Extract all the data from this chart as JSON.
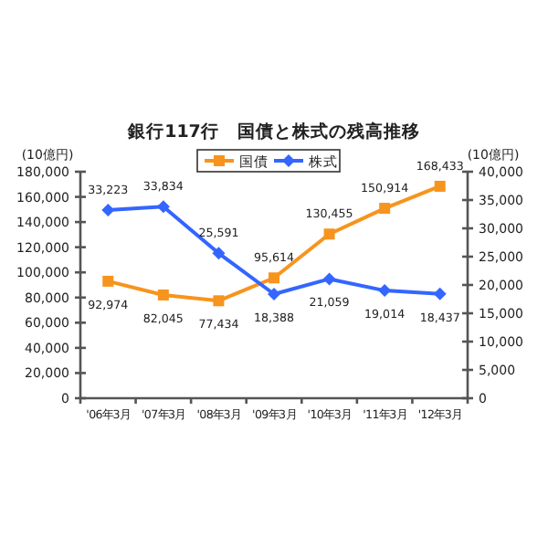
{
  "chart_data": {
    "type": "line",
    "title": "銀行117行　国債と株式の残高推移",
    "ylabel": "(10億円)",
    "y2label": "(10億円)",
    "categories": [
      "'06年3月",
      "'07年3月",
      "'08年3月",
      "'09年3月",
      "'10年3月",
      "'11年3月",
      "'12年3月"
    ],
    "series": [
      {
        "name": "国債",
        "color": "#f7941d",
        "marker": "square",
        "values": [
          92974,
          82045,
          77434,
          95614,
          130455,
          150914,
          168433
        ],
        "value_labels": [
          "92,974",
          "82,045",
          "77,434",
          "95,614",
          "130,455",
          "150,914",
          "168,433"
        ]
      },
      {
        "name": "株式",
        "color": "#3366ff",
        "marker": "diamond",
        "axis": "y2",
        "values": [
          33223,
          33834,
          25591,
          18388,
          21059,
          19014,
          18437
        ],
        "value_labels": [
          "33,223",
          "33,834",
          "25,591",
          "18,388",
          "21,059",
          "19,014",
          "18,437"
        ]
      }
    ],
    "ylim": [
      0,
      180000
    ],
    "yticks": [
      {
        "value": 0,
        "label": "0"
      },
      {
        "value": 20000,
        "label": "20,000"
      },
      {
        "value": 40000,
        "label": "40,000"
      },
      {
        "value": 60000,
        "label": "60,000"
      },
      {
        "value": 80000,
        "label": "80,000"
      },
      {
        "value": 100000,
        "label": "100,000"
      },
      {
        "value": 120000,
        "label": "120,000"
      },
      {
        "value": 140000,
        "label": "140,000"
      },
      {
        "value": 160000,
        "label": "160,000"
      },
      {
        "value": 180000,
        "label": "180,000"
      }
    ],
    "y2lim": [
      0,
      40000
    ],
    "y2ticks": [
      {
        "value": 0,
        "label": "0"
      },
      {
        "value": 5000,
        "label": "5,000"
      },
      {
        "value": 10000,
        "label": "10,000"
      },
      {
        "value": 15000,
        "label": "15,000"
      },
      {
        "value": 20000,
        "label": "20,000"
      },
      {
        "value": 25000,
        "label": "25,000"
      },
      {
        "value": 30000,
        "label": "30,000"
      },
      {
        "value": 35000,
        "label": "35,000"
      },
      {
        "value": 40000,
        "label": "40,000"
      }
    ],
    "grid": false,
    "legend": "top",
    "line_style": "solid"
  }
}
